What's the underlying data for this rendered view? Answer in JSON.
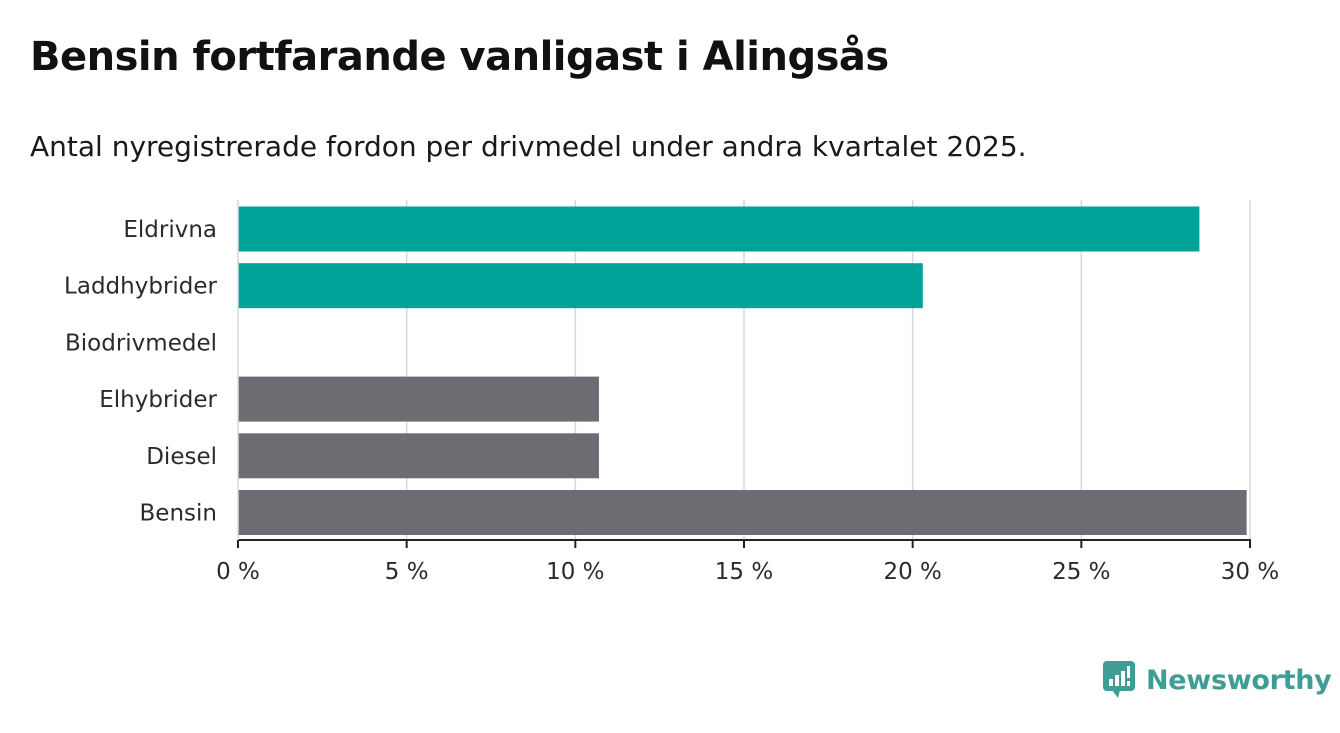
{
  "title": "Bensin fortfarande vanligast i Alingsås",
  "subtitle": "Antal nyregistrerade fordon per drivmedel under andra kvartalet 2025.",
  "brand": {
    "name": "Newsworthy",
    "icon": "newsworthy-logo-icon",
    "color": "#3f9d96"
  },
  "colors": {
    "highlight": "#00a398",
    "default": "#6e6c73",
    "grid": "#d9d9d9",
    "axis": "#222222"
  },
  "chart_data": {
    "type": "bar",
    "orientation": "horizontal",
    "categories": [
      "Eldrivna",
      "Laddhybrider",
      "Biodrivmedel",
      "Elhybrider",
      "Diesel",
      "Bensin"
    ],
    "values": [
      28.5,
      20.3,
      0,
      10.7,
      10.7,
      29.9
    ],
    "bar_colors": [
      "#00a398",
      "#00a398",
      "#6e6c73",
      "#6e6c73",
      "#6e6c73",
      "#6e6c73"
    ],
    "xlim": [
      0,
      30
    ],
    "ticks": [
      0,
      5,
      10,
      15,
      20,
      25,
      30
    ],
    "tick_labels": [
      "0 %",
      "5 %",
      "10 %",
      "15 %",
      "20 %",
      "25 %",
      "30 %"
    ],
    "grid": true,
    "xlabel": "",
    "ylabel": ""
  }
}
